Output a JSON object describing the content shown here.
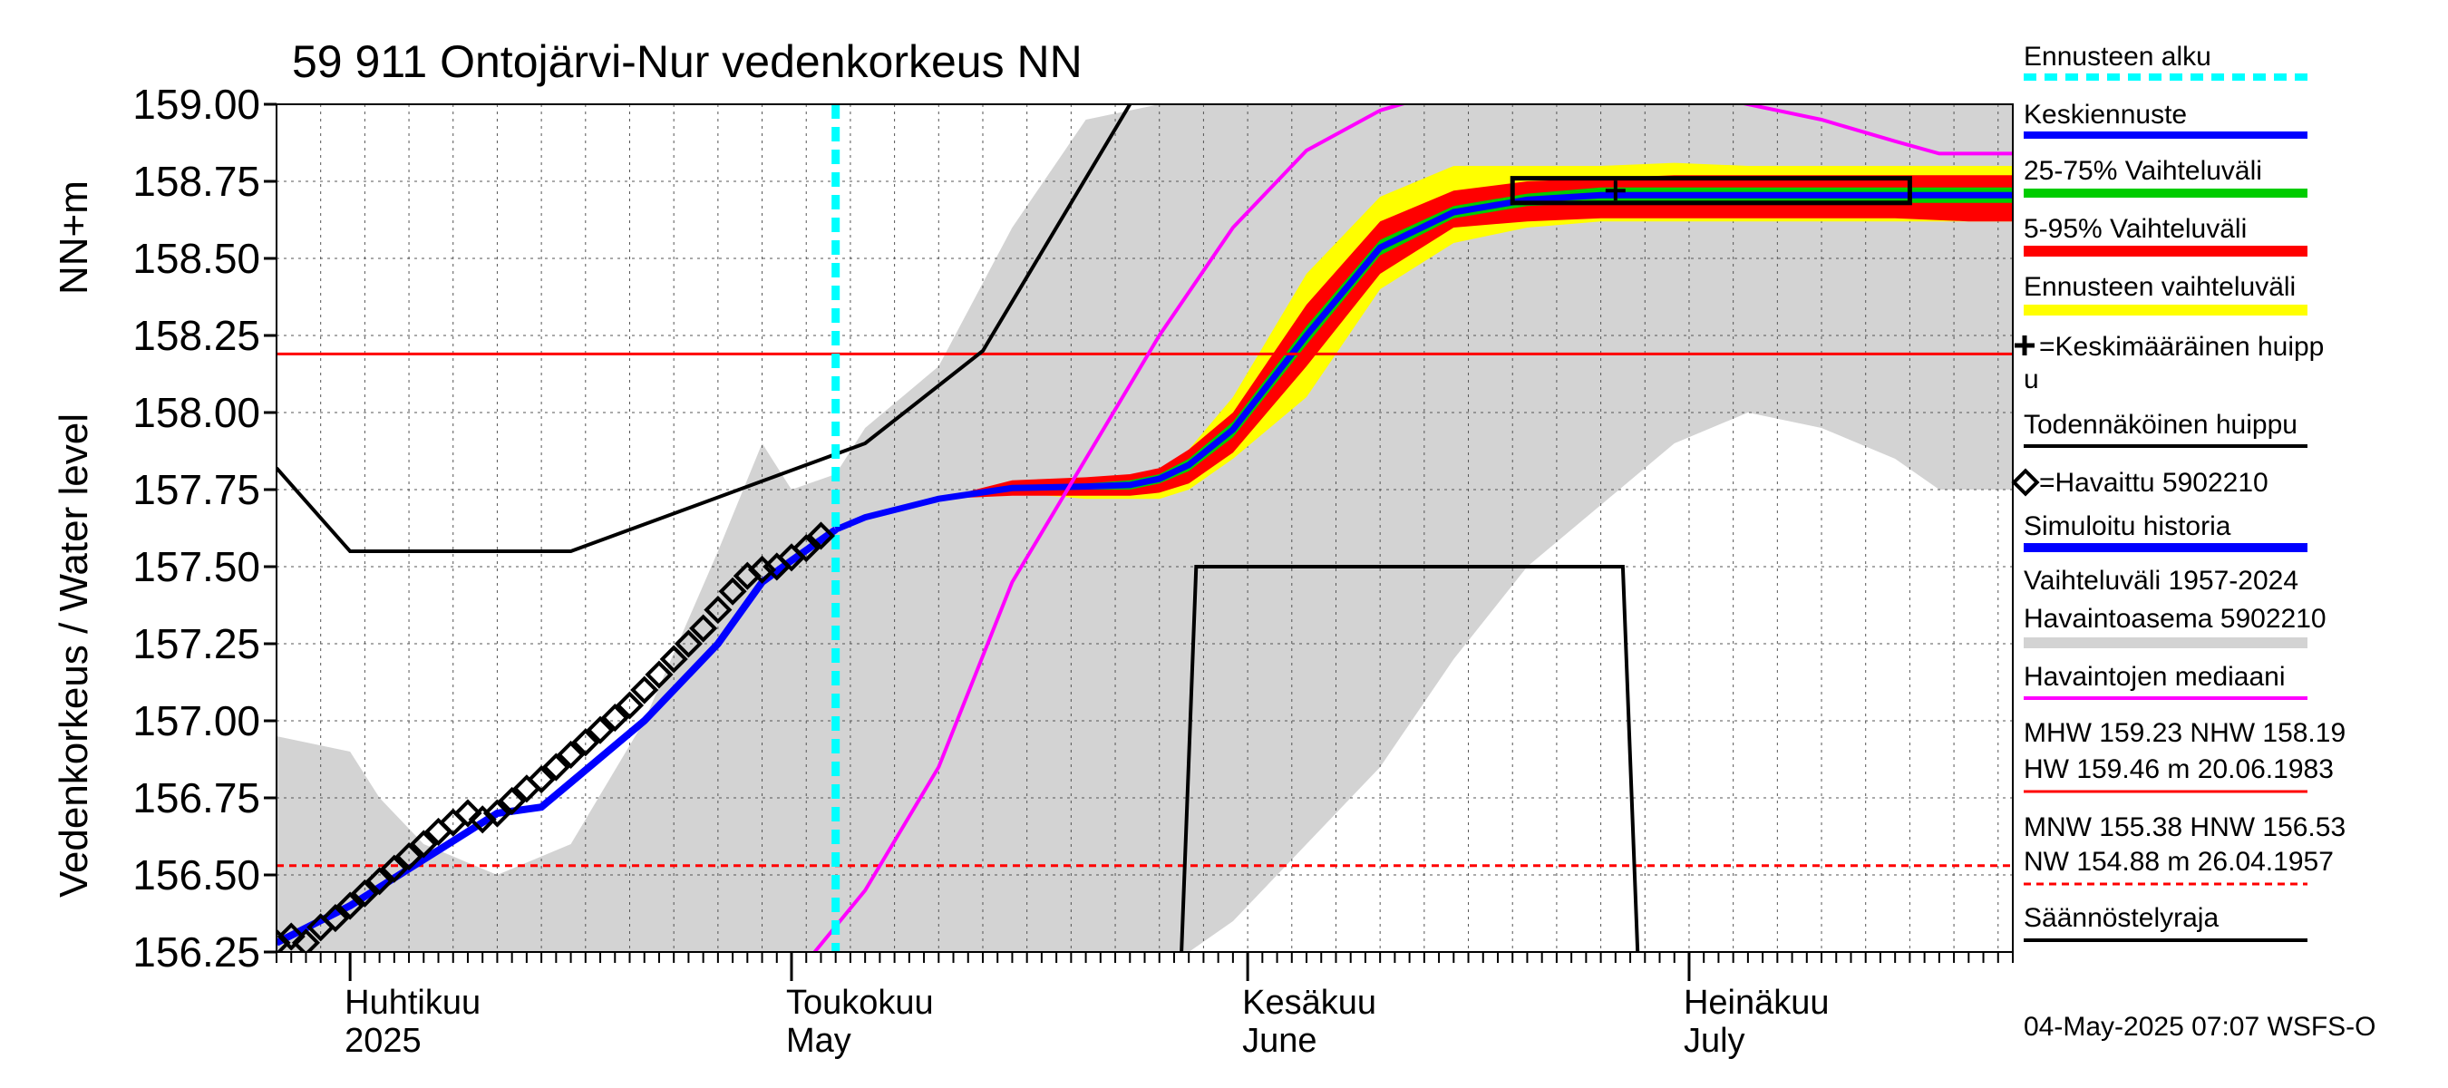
{
  "chart_data": {
    "type": "area",
    "title": "59 911 Ontojärvi-Nur vedenkorkeus NN",
    "ylabel_main": "Vedenkorkeus / Water level",
    "ylabel_unit": "NN+m",
    "ylim": [
      156.25,
      159.0
    ],
    "y_ticks": [
      "159.00",
      "158.75",
      "158.50",
      "158.25",
      "158.00",
      "157.75",
      "157.50",
      "157.25",
      "157.00",
      "156.75",
      "156.50",
      "156.25"
    ],
    "y_tick_values": [
      159.0,
      158.75,
      158.5,
      158.25,
      158.0,
      157.75,
      157.5,
      157.25,
      157.0,
      156.75,
      156.5,
      156.25
    ],
    "xlim_days": [
      0,
      118
    ],
    "x_axis_note": "days since 2025-03-27",
    "month_starts": [
      5,
      35,
      66,
      96
    ],
    "month_labels": [
      {
        "fi": "Huhtikuu",
        "en": "2025",
        "day": 5
      },
      {
        "fi": "Toukokuu",
        "en": "May",
        "day": 35
      },
      {
        "fi": "Kesäkuu",
        "en": "June",
        "day": 66
      },
      {
        "fi": "Heinäkuu",
        "en": "July",
        "day": 96
      }
    ],
    "forecast_start_day": 38,
    "hlines": [
      {
        "name": "NHW",
        "value": 158.19,
        "style": "solid",
        "color": "#ff0000"
      },
      {
        "name": "HNW",
        "value": 156.53,
        "style": "dashed",
        "color": "#ff0000"
      }
    ],
    "history_range_days": [
      0,
      5,
      7,
      10,
      15,
      20,
      25,
      30,
      33,
      35,
      38,
      40,
      45,
      50,
      55,
      60,
      62,
      65,
      70,
      75,
      80,
      85,
      90,
      95,
      100,
      105,
      110,
      113,
      118
    ],
    "history_range_upper": [
      156.95,
      156.9,
      156.75,
      156.6,
      156.5,
      156.6,
      157.0,
      157.55,
      157.9,
      157.75,
      157.8,
      157.95,
      158.15,
      158.6,
      158.95,
      159.0,
      159.0,
      159.0,
      159.0,
      159.0,
      159.0,
      159.0,
      159.0,
      159.0,
      159.0,
      159.0,
      159.0,
      159.0,
      159.0
    ],
    "history_range_lower": [
      156.25,
      156.25,
      156.25,
      156.25,
      156.25,
      156.25,
      156.25,
      156.25,
      156.25,
      156.25,
      156.25,
      156.25,
      156.25,
      156.25,
      156.25,
      156.25,
      156.25,
      156.35,
      156.6,
      156.85,
      157.2,
      157.5,
      157.7,
      157.9,
      158.0,
      157.95,
      157.85,
      157.75,
      157.75
    ],
    "median_days": [
      30,
      34,
      40,
      45,
      50,
      55,
      60,
      65,
      70,
      75,
      80,
      90,
      95,
      100,
      105,
      110,
      113,
      118
    ],
    "median_values": [
      156.0,
      156.1,
      156.45,
      156.85,
      157.45,
      157.85,
      158.25,
      158.6,
      158.85,
      158.98,
      159.05,
      159.05,
      159.05,
      159.0,
      158.95,
      158.88,
      158.84,
      158.84
    ],
    "forecast_days": [
      38,
      40,
      45,
      50,
      55,
      58,
      60,
      62,
      65,
      70,
      75,
      80,
      85,
      90,
      95,
      100,
      105,
      110,
      115,
      118
    ],
    "forecast_total_upper": [
      157.62,
      157.66,
      157.72,
      157.75,
      157.76,
      157.77,
      157.8,
      157.88,
      158.05,
      158.45,
      158.7,
      158.8,
      158.8,
      158.8,
      158.81,
      158.8,
      158.8,
      158.8,
      158.8,
      158.8
    ],
    "forecast_total_lower": [
      157.62,
      157.66,
      157.72,
      157.74,
      157.72,
      157.72,
      157.72,
      157.75,
      157.85,
      158.05,
      158.4,
      158.55,
      158.6,
      158.62,
      158.62,
      158.62,
      158.62,
      158.62,
      158.62,
      158.62
    ],
    "p5_95_upper": [
      157.62,
      157.66,
      157.72,
      157.78,
      157.79,
      157.8,
      157.82,
      157.88,
      158.0,
      158.35,
      158.62,
      158.72,
      158.75,
      158.76,
      158.77,
      158.77,
      158.77,
      158.77,
      158.77,
      158.77
    ],
    "p5_95_lower": [
      157.62,
      157.66,
      157.72,
      157.73,
      157.73,
      157.73,
      157.74,
      157.77,
      157.87,
      158.15,
      158.45,
      158.6,
      158.62,
      158.63,
      158.63,
      158.63,
      158.63,
      158.63,
      158.62,
      158.62
    ],
    "p25_75_upper": [
      157.62,
      157.66,
      157.72,
      157.76,
      157.77,
      157.78,
      157.8,
      157.85,
      157.97,
      158.28,
      158.56,
      158.67,
      158.71,
      158.73,
      158.73,
      158.73,
      158.73,
      158.73,
      158.73,
      158.73
    ],
    "p25_75_lower": [
      157.62,
      157.66,
      157.72,
      157.75,
      157.75,
      157.75,
      157.77,
      157.81,
      157.92,
      158.22,
      158.51,
      158.63,
      158.67,
      158.68,
      158.68,
      158.68,
      158.68,
      158.68,
      158.68,
      158.68
    ],
    "median_forecast": [
      157.62,
      157.66,
      157.72,
      157.755,
      157.76,
      157.765,
      157.785,
      157.83,
      157.945,
      158.25,
      158.535,
      158.65,
      158.69,
      158.705,
      158.705,
      158.705,
      158.705,
      158.705,
      158.705,
      158.705
    ],
    "simulated_history_days": [
      0,
      5,
      10,
      15,
      18,
      20,
      25,
      30,
      33,
      35,
      38
    ],
    "simulated_history_values": [
      156.28,
      156.4,
      156.55,
      156.7,
      156.72,
      156.8,
      157.0,
      157.25,
      157.45,
      157.52,
      157.62
    ],
    "observed_days": [
      0,
      1,
      2,
      3,
      4,
      5,
      6,
      7,
      8,
      9,
      10,
      11,
      12,
      13,
      14,
      15,
      16,
      17,
      18,
      19,
      20,
      21,
      22,
      23,
      24,
      25,
      26,
      27,
      28,
      29,
      30,
      31,
      32,
      33,
      34,
      35,
      36,
      37
    ],
    "observed_values": [
      156.28,
      156.3,
      156.28,
      156.33,
      156.36,
      156.4,
      156.44,
      156.48,
      156.52,
      156.56,
      156.6,
      156.64,
      156.67,
      156.7,
      156.68,
      156.7,
      156.74,
      156.78,
      156.81,
      156.85,
      156.89,
      156.93,
      156.97,
      157.01,
      157.05,
      157.1,
      157.15,
      157.2,
      157.25,
      157.3,
      157.36,
      157.42,
      157.47,
      157.49,
      157.5,
      157.53,
      157.56,
      157.6
    ],
    "regulation_limit_days": [
      0,
      5,
      20,
      40,
      48,
      58
    ],
    "regulation_limit_values": [
      157.82,
      157.55,
      157.55,
      157.9,
      158.2,
      159.0
    ],
    "probable_peak_days": [
      61.5,
      62.5,
      91.5,
      92.5
    ],
    "probable_peak_values": [
      156.25,
      157.5,
      157.5,
      156.25
    ],
    "mean_peak_box": {
      "day_start": 84,
      "day_end": 111,
      "low": 158.68,
      "high": 158.76
    },
    "mean_peak_marker": {
      "day": 91,
      "value": 158.72
    }
  },
  "legend": {
    "forecast_start": "Ennusteen alku",
    "median_forecast": "Keskiennuste",
    "range_25_75": "25-75% Vaihteluväli",
    "range_5_95": "5-95% Vaihteluväli",
    "forecast_range": "Ennusteen vaihteluväli",
    "mean_peak_line1": "=Keskimääräinen huipp",
    "mean_peak_line2": "u",
    "probable_peak": "Todennäköinen huippu",
    "observed": "=Havaittu 5902210",
    "simulated_history": "Simuloitu historia",
    "history_range_line1": "Vaihteluväli 1957-2024",
    "history_range_line2": " Havaintoasema 5902210",
    "obs_median": "Havaintojen mediaani",
    "high_line1": "MHW 159.23 NHW 158.19",
    "high_line2": "HW 159.46 m 20.06.1983",
    "low_line1": "MNW 155.38 HNW 156.53",
    "low_line2": "NW 154.88 m 26.04.1957",
    "regulation": "Säännöstelyraja"
  },
  "footer": "04-May-2025 07:07 WSFS-O",
  "colors": {
    "history_range": "#d3d3d3",
    "forecast_range": "#ffff00",
    "p5_95": "#ff0000",
    "p25_75": "#00cc00",
    "median_forecast": "#0000ff",
    "simulated": "#0000ff",
    "obs_median": "#ff00ff",
    "forecast_start": "#00ffff",
    "black": "#000000"
  }
}
